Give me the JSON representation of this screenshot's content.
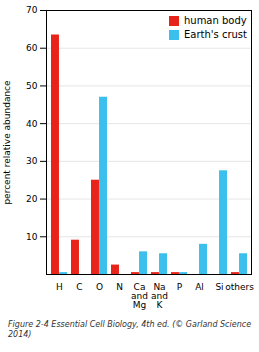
{
  "chart_data": {
    "type": "bar",
    "categories": [
      "H",
      "C",
      "O",
      "N",
      "Ca\nand\nMg",
      "Na\nand\nK",
      "P",
      "Al",
      "Si",
      "others"
    ],
    "series": [
      {
        "name": "human body",
        "color": "#e8231a",
        "values": [
          63.5,
          9.1,
          25.0,
          2.5,
          0.5,
          0.5,
          0.5,
          0.0,
          0.0,
          0.5
        ]
      },
      {
        "name": "Earth's crust",
        "color": "#3bbfed",
        "values": [
          0.5,
          0.0,
          47.0,
          0.0,
          6.0,
          5.5,
          0.5,
          8.0,
          27.5,
          5.5
        ]
      }
    ],
    "ylabel": "percent relative abundance",
    "ylim": [
      0,
      70
    ],
    "yticks": [
      10,
      20,
      30,
      40,
      50,
      60,
      70
    ],
    "grid": true,
    "legend": "upper right",
    "caption": "Figure 2-4  Essential Cell Biology, 4th ed. (© Garland Science 2014)"
  }
}
